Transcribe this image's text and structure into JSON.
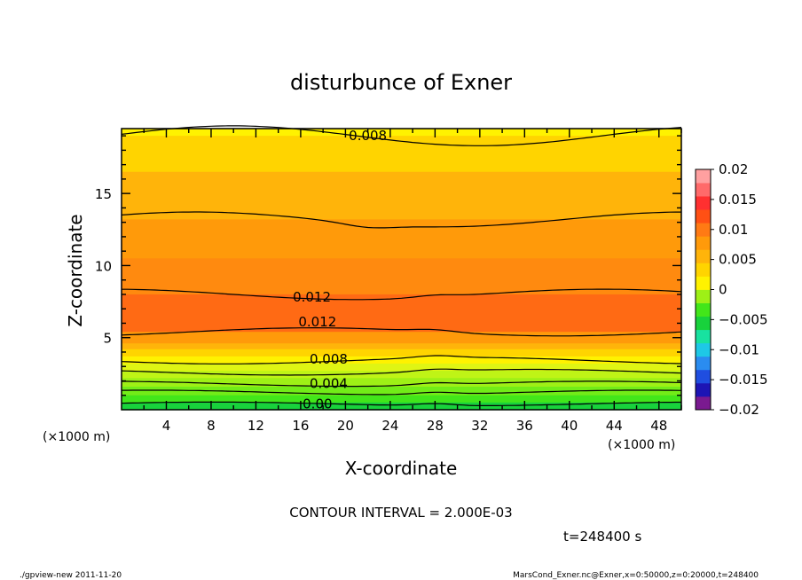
{
  "chart_data": {
    "type": "contour",
    "title": "disturbunce of Exner",
    "xlabel": "X-coordinate",
    "ylabel": "Z-coordinate",
    "x_unit": "(×1000 m)",
    "y_unit": "(×1000 m)",
    "xlim": [
      0,
      50
    ],
    "ylim": [
      0,
      19.5
    ],
    "x_ticks": [
      4,
      8,
      12,
      16,
      20,
      24,
      28,
      32,
      36,
      40,
      44,
      48
    ],
    "y_ticks": [
      5,
      10,
      15
    ],
    "contour_interval_text": "CONTOUR INTERVAL = 2.000E-03",
    "time_text": "t=248400 s",
    "colorbar": {
      "min": -0.02,
      "max": 0.02,
      "ticks": [
        "0.02",
        "0.015",
        "0.01",
        "0.005",
        "0",
        "−0.005",
        "−0.01",
        "−0.015",
        "−0.02"
      ],
      "colors": [
        "#7a1a90",
        "#1d14b4",
        "#1f4ee0",
        "#2a8cf0",
        "#1ec8e6",
        "#18e2a0",
        "#18d23c",
        "#42e61a",
        "#9ef016",
        "#fff200",
        "#ffd400",
        "#ffb40a",
        "#ff9a0a",
        "#ff7a14",
        "#ff5014",
        "#ff3030",
        "#ff6a6a",
        "#ffa0a0"
      ]
    },
    "contour_labels": [
      {
        "text": "0.008",
        "x": 22,
        "z": 19.0
      },
      {
        "text": "0.012",
        "x": 17,
        "z": 7.8
      },
      {
        "text": "0.012",
        "x": 17.5,
        "z": 6.1
      },
      {
        "text": "0.008",
        "x": 18.5,
        "z": 3.5
      },
      {
        "text": "0.004",
        "x": 18.5,
        "z": 1.8
      },
      {
        "text": "0.00",
        "x": 17.5,
        "z": 0.4
      }
    ],
    "bands": [
      {
        "from": 19.5,
        "to": 19.0,
        "color": "#fff200"
      },
      {
        "from": 19.0,
        "to": 16.5,
        "color": "#ffd400"
      },
      {
        "from": 16.5,
        "to": 13.2,
        "color": "#ffb40a"
      },
      {
        "from": 13.2,
        "to": 10.5,
        "color": "#ff9a0a"
      },
      {
        "from": 10.5,
        "to": 8.0,
        "color": "#ff8a0f"
      },
      {
        "from": 8.0,
        "to": 5.4,
        "color": "#ff6a14"
      },
      {
        "from": 5.4,
        "to": 4.6,
        "color": "#ff9a0a"
      },
      {
        "from": 4.6,
        "to": 4.2,
        "color": "#ffb40a"
      },
      {
        "from": 4.2,
        "to": 3.7,
        "color": "#ffd400"
      },
      {
        "from": 3.7,
        "to": 3.2,
        "color": "#fff200"
      },
      {
        "from": 3.2,
        "to": 2.7,
        "color": "#dff514"
      },
      {
        "from": 2.7,
        "to": 2.2,
        "color": "#bff416"
      },
      {
        "from": 2.2,
        "to": 1.6,
        "color": "#9ef016"
      },
      {
        "from": 1.6,
        "to": 1.0,
        "color": "#72ec18"
      },
      {
        "from": 1.0,
        "to": 0.5,
        "color": "#42e61a"
      },
      {
        "from": 0.5,
        "to": 0.0,
        "color": "#18d23c"
      }
    ],
    "contour_levels_z": [
      19.0,
      13.2,
      8.0,
      5.4,
      3.4,
      2.6,
      1.8,
      1.2,
      0.4
    ]
  },
  "footer": {
    "left": "./gpview-new 2011-11-20",
    "right": "MarsCond_Exner.nc@Exner,x=0:50000,z=0:20000,t=248400"
  }
}
